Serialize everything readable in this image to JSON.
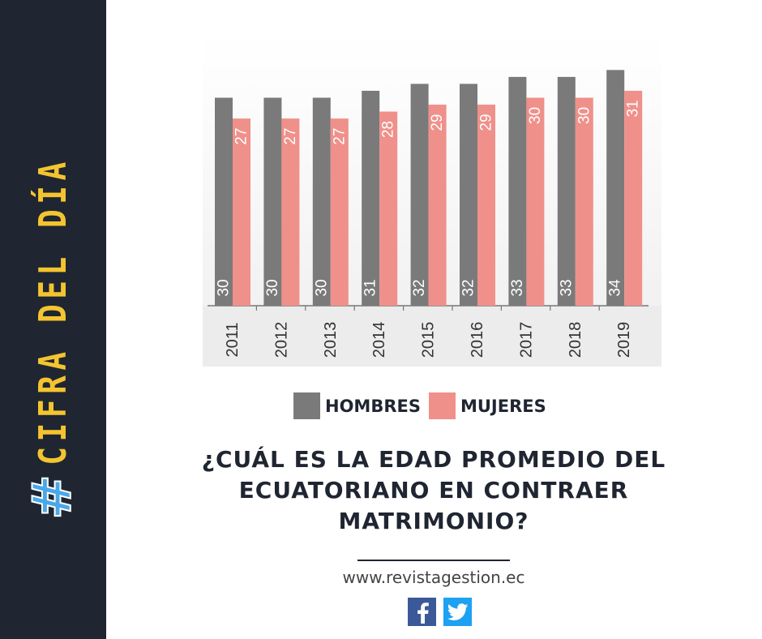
{
  "brand": {
    "hash": "#",
    "label": "CIFRA DEL DÍA",
    "colors": {
      "background": "#1f2631",
      "hash": "#4aa8e8",
      "label": "#f4c430"
    }
  },
  "chart_data": {
    "type": "bar",
    "categories": [
      "2011",
      "2012",
      "2013",
      "2014",
      "2015",
      "2016",
      "2017",
      "2018",
      "2019"
    ],
    "series": [
      {
        "name": "HOMBRES",
        "color": "#7a7a7a",
        "values": [
          30,
          30,
          30,
          31,
          32,
          32,
          33,
          33,
          34
        ]
      },
      {
        "name": "MUJERES",
        "color": "#f0908a",
        "values": [
          27,
          27,
          27,
          28,
          29,
          29,
          30,
          30,
          31
        ]
      }
    ],
    "value_labels": "rotated inside bars",
    "x_tick_labels": "rotated vertical",
    "axis_background": "#ececec",
    "legend": "bottom-center"
  },
  "legend": {
    "hombres": "HOMBRES",
    "mujeres": "MUJERES"
  },
  "question": "¿CUÁL ES LA EDAD PROMEDIO DEL ECUATORIANO EN CONTRAER MATRIMONIO?",
  "website": "www.revistagestion.ec",
  "social": {
    "icons": [
      "facebook-icon",
      "twitter-icon"
    ]
  }
}
